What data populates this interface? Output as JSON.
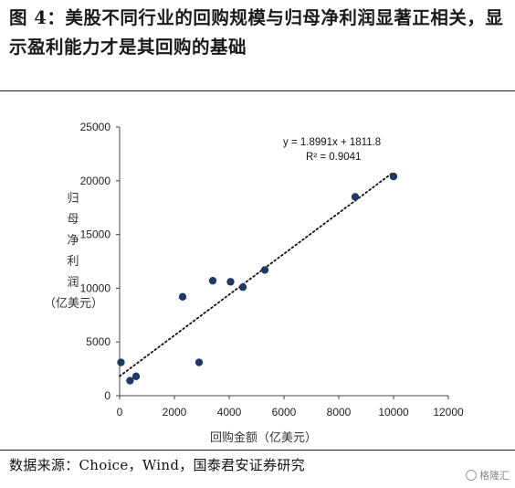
{
  "figure": {
    "title": "图 4：美股不同行业的回购规模与归母净利润显著正相关，显示盈利能力才是其回购的基础",
    "source": "数据来源：Choice，Wind，国泰君安证券研究",
    "watermark": "格隆汇",
    "watermark_icon": "smiley-logo-icon"
  },
  "chart_data": {
    "type": "scatter",
    "title": "",
    "xlabel": "回购金额（亿美元）",
    "ylabel": "归母净利润（亿美元）",
    "ylabel_chars": [
      "归",
      "母",
      "净",
      "利",
      "润",
      "（亿美元）"
    ],
    "xlim": [
      0,
      12000
    ],
    "ylim": [
      0,
      25000
    ],
    "x_ticks": [
      0,
      2000,
      4000,
      6000,
      8000,
      10000,
      12000
    ],
    "y_ticks": [
      0,
      5000,
      10000,
      15000,
      20000,
      25000
    ],
    "grid": false,
    "legend": "none",
    "marker_color": "#1f3864",
    "points": [
      {
        "x": 50,
        "y": 3100
      },
      {
        "x": 380,
        "y": 1400
      },
      {
        "x": 600,
        "y": 1800
      },
      {
        "x": 2300,
        "y": 9200
      },
      {
        "x": 2900,
        "y": 3100
      },
      {
        "x": 3400,
        "y": 10700
      },
      {
        "x": 4050,
        "y": 10600
      },
      {
        "x": 4500,
        "y": 10100
      },
      {
        "x": 5300,
        "y": 11700
      },
      {
        "x": 8600,
        "y": 18500
      },
      {
        "x": 10000,
        "y": 20400
      }
    ],
    "trendline": {
      "type": "linear",
      "slope": 1.8991,
      "intercept": 1811.8,
      "x_range": [
        0,
        10000
      ],
      "style": "dotted",
      "equation_label": "y = 1.8991x + 1811.8",
      "r2_label": "R² = 0.9041"
    }
  }
}
